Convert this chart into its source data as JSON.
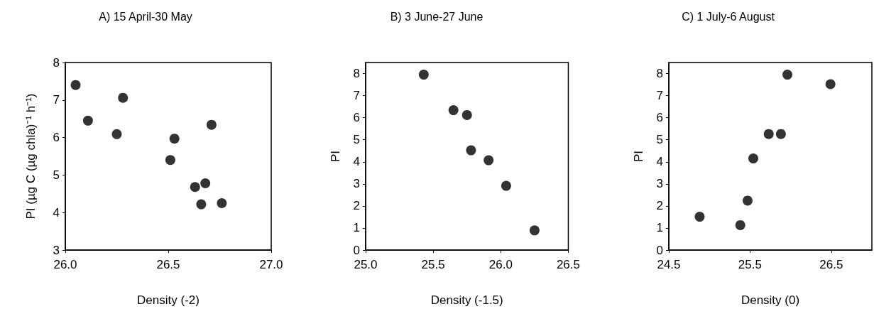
{
  "chart_data": [
    {
      "type": "scatter",
      "title": "A) 15 April-30 May",
      "xlabel": "Density (-2)",
      "ylabel": "PI (µg C (µg chla)⁻¹ h⁻¹)",
      "color": "#000000",
      "marker": "circle",
      "x": [
        26.05,
        26.11,
        26.28,
        26.25,
        26.53,
        26.51,
        26.71,
        26.63,
        26.68,
        26.66,
        26.76
      ],
      "values": [
        7.4,
        6.45,
        7.06,
        6.09,
        5.97,
        5.4,
        6.34,
        4.68,
        4.78,
        4.22,
        4.25
      ],
      "xlim": [
        26.0,
        27.0
      ],
      "xticks": [
        {
          "value": 26.0,
          "label": "26.0"
        },
        26.5,
        {
          "value": 27.0,
          "label": "27.0"
        }
      ],
      "ylim": [
        3,
        8
      ],
      "yticks": [
        3,
        4,
        5,
        6,
        7,
        8
      ]
    },
    {
      "type": "scatter",
      "title": "B) 3 June-27 June",
      "xlabel": "Density (-1.5)",
      "ylabel": "PI",
      "color": "#000000",
      "marker": "circle",
      "x": [
        25.43,
        25.65,
        25.75,
        25.78,
        25.91,
        26.04,
        26.25
      ],
      "values": [
        7.95,
        6.34,
        6.12,
        4.52,
        4.07,
        2.91,
        0.89
      ],
      "xlim": [
        25.0,
        26.5
      ],
      "xticks": [
        {
          "value": 25.0,
          "label": "25.0"
        },
        25.5,
        {
          "value": 26.0,
          "label": "26.0"
        },
        26.5
      ],
      "ylim": [
        0,
        8.5
      ],
      "yticks": [
        0,
        1,
        2,
        3,
        4,
        5,
        6,
        7,
        8
      ]
    },
    {
      "type": "scatter",
      "title": "C) 1 July-6 August",
      "xlabel": "Density (0)",
      "ylabel": "PI",
      "color": "#000000",
      "marker": "circle",
      "x": [
        24.88,
        25.38,
        25.47,
        25.54,
        25.73,
        25.88,
        25.96,
        26.49
      ],
      "values": [
        1.51,
        1.13,
        2.24,
        4.15,
        5.26,
        5.26,
        7.95,
        7.52
      ],
      "xlim": [
        24.5,
        27.0
      ],
      "xticks": [
        24.5,
        25.5,
        26.5
      ],
      "ylim": [
        0,
        8.5
      ],
      "yticks": [
        0,
        1,
        2,
        3,
        4,
        5,
        6,
        7,
        8
      ]
    }
  ]
}
